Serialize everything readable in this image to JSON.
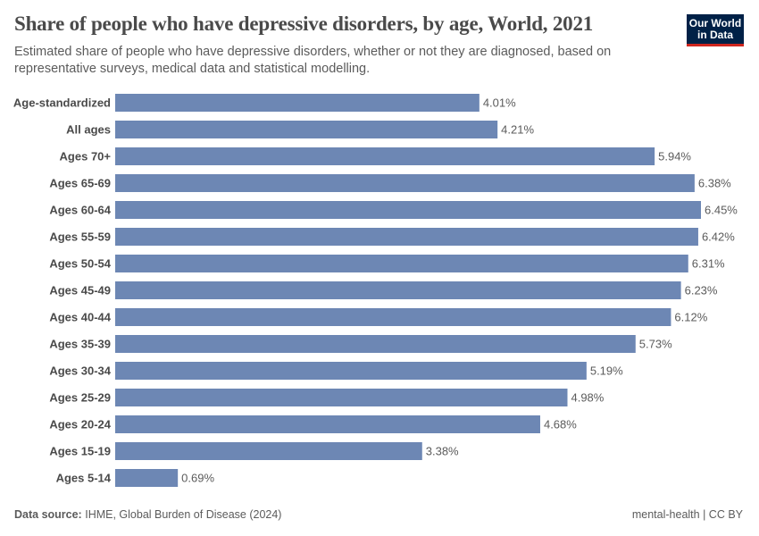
{
  "header": {
    "title": "Share of people who have depressive disorders, by age, World, 2021",
    "subtitle": "Estimated share of people who have depressive disorders, whether or not they are diagnosed, based on representative surveys, medical data and statistical modelling.",
    "logo": "Our World in Data"
  },
  "footer": {
    "source_label": "Data source:",
    "source": "IHME, Global Burden of Disease (2024)",
    "license": "mental-health | CC BY"
  },
  "colors": {
    "bar": "#6d87b4",
    "logo_bg": "#002147",
    "logo_accent": "#ce261e"
  },
  "chart_data": {
    "type": "bar",
    "orientation": "horizontal",
    "title": "Share of people who have depressive disorders, by age, World, 2021",
    "unit": "%",
    "categories": [
      "Age-standardized",
      "All ages",
      "Ages 70+",
      "Ages 65-69",
      "Ages 60-64",
      "Ages 55-59",
      "Ages 50-54",
      "Ages 45-49",
      "Ages 40-44",
      "Ages 35-39",
      "Ages 30-34",
      "Ages 25-29",
      "Ages 20-24",
      "Ages 15-19",
      "Ages 5-14"
    ],
    "values": [
      4.01,
      4.21,
      5.94,
      6.38,
      6.45,
      6.42,
      6.31,
      6.23,
      6.12,
      5.73,
      5.19,
      4.98,
      4.68,
      3.38,
      0.69
    ],
    "labels": [
      "4.01%",
      "4.21%",
      "5.94%",
      "6.38%",
      "6.45%",
      "6.42%",
      "6.31%",
      "6.23%",
      "6.12%",
      "5.73%",
      "5.19%",
      "4.98%",
      "4.68%",
      "3.38%",
      "0.69%"
    ],
    "xlim": [
      0,
      6.45
    ],
    "grid": false,
    "legend": "none"
  }
}
